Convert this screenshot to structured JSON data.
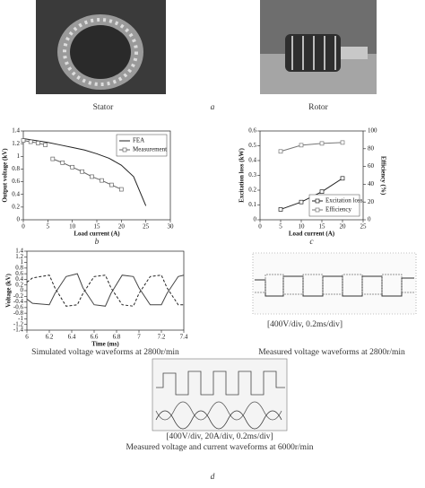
{
  "chart_data": [
    {
      "type": "line",
      "caption": "b",
      "xlabel": "Load current (A)",
      "ylabel": "Output voltage (kV)",
      "xlim": [
        0,
        30
      ],
      "xticks": [
        0,
        5,
        10,
        15,
        20,
        25,
        30
      ],
      "ylim": [
        0,
        1.4
      ],
      "yticks": [
        0,
        0.2,
        0.4,
        0.6,
        0.8,
        1,
        1.2,
        1.4
      ],
      "legend": "upper right",
      "series": [
        {
          "name": "FEA",
          "color": "#222222",
          "marker": "none",
          "dash": "solid",
          "x": [
            0,
            2.5,
            5,
            7.5,
            10,
            12.5,
            15,
            17.5,
            20,
            22.5,
            25
          ],
          "values": [
            1.28,
            1.25,
            1.22,
            1.18,
            1.14,
            1.1,
            1.04,
            0.97,
            0.86,
            0.68,
            0.22
          ]
        },
        {
          "name": "Measurement",
          "color": "#666666",
          "marker": "square",
          "dash": "solid",
          "x": [
            0,
            1.5,
            3,
            4.5,
            6,
            6,
            8,
            10,
            12,
            14,
            16,
            18,
            20
          ],
          "values": [
            1.25,
            1.23,
            1.21,
            1.18,
            null,
            0.96,
            0.9,
            0.83,
            0.76,
            0.68,
            0.62,
            0.55,
            0.48
          ]
        }
      ]
    },
    {
      "type": "line",
      "caption": "c",
      "xlabel": "Load current (A)",
      "ylabel": "Excitation loss (kW)",
      "y2label": "Efficiency (%)",
      "xlim": [
        0,
        25
      ],
      "xticks": [
        0,
        5,
        10,
        15,
        20,
        25
      ],
      "ylim": [
        0,
        0.6
      ],
      "yticks": [
        0,
        0.1,
        0.2,
        0.3,
        0.4,
        0.5,
        0.6
      ],
      "y2lim": [
        0,
        100
      ],
      "y2ticks": [
        0,
        20,
        40,
        60,
        80,
        100
      ],
      "legend": "lower right",
      "series": [
        {
          "name": "Excitation loss",
          "color": "#222222",
          "marker": "square",
          "dash": "solid",
          "x": [
            5,
            10,
            15,
            20
          ],
          "values": [
            0.07,
            0.12,
            0.19,
            0.28
          ]
        },
        {
          "name": "Efficiency",
          "color": "#777777",
          "marker": "square",
          "dash": "solid",
          "axis": "y2",
          "x": [
            5,
            10,
            15,
            20
          ],
          "values": [
            77,
            84,
            86,
            87
          ]
        }
      ]
    },
    {
      "type": "line",
      "caption": "Simulated voltage waveforms at 2800r/min",
      "xlabel": "Time (ms)",
      "ylabel": "Voltage (kV)",
      "xlim": [
        6,
        7.4
      ],
      "xticks": [
        6,
        6.2,
        6.4,
        6.6,
        6.8,
        7,
        7.2,
        7.4
      ],
      "ylim": [
        -1.4,
        1.4
      ],
      "yticks": [
        -1.4,
        -1.2,
        -1,
        -0.8,
        -0.6,
        -0.4,
        -0.2,
        0,
        0.2,
        0.4,
        0.6,
        0.8,
        1,
        1.2,
        1.4
      ],
      "series": [
        {
          "color": "#222222",
          "marker": "none",
          "dash": "dashed",
          "x": [
            6,
            6.05,
            6.2,
            6.25,
            6.35,
            6.45,
            6.5,
            6.6,
            6.7,
            6.75,
            6.85,
            6.95,
            7,
            7.1,
            7.2,
            7.25,
            7.35,
            7.4
          ],
          "values": [
            0.3,
            0.45,
            0.55,
            0.1,
            -0.55,
            -0.5,
            -0.1,
            0.5,
            0.55,
            0.1,
            -0.5,
            -0.55,
            -0.1,
            0.5,
            0.55,
            0.1,
            -0.5,
            -0.5
          ]
        },
        {
          "color": "#444444",
          "marker": "none",
          "dash": "solid",
          "x": [
            6,
            6.05,
            6.2,
            6.25,
            6.35,
            6.45,
            6.5,
            6.6,
            6.7,
            6.75,
            6.85,
            6.95,
            7,
            7.1,
            7.2,
            7.25,
            7.35,
            7.4
          ],
          "values": [
            -0.3,
            -0.45,
            -0.5,
            -0.1,
            0.5,
            0.6,
            0.1,
            -0.5,
            -0.55,
            -0.1,
            0.55,
            0.5,
            0.1,
            -0.5,
            -0.5,
            -0.1,
            0.5,
            0.55
          ]
        }
      ]
    }
  ],
  "figure": {
    "panel_a": {
      "stator": "Stator",
      "rotor": "Rotor",
      "caption": "a"
    },
    "panel_d": {
      "measured_2800": {
        "scale": "[400V/div, 0.2ms/div]",
        "caption": "Measured voltage waveforms at 2800r/min"
      },
      "measured_6000": {
        "scale": "[400V/div, 20A/div, 0.2ms/div]",
        "caption": "Measured voltage and current waveforms at 6000r/min"
      },
      "caption": "d"
    }
  }
}
